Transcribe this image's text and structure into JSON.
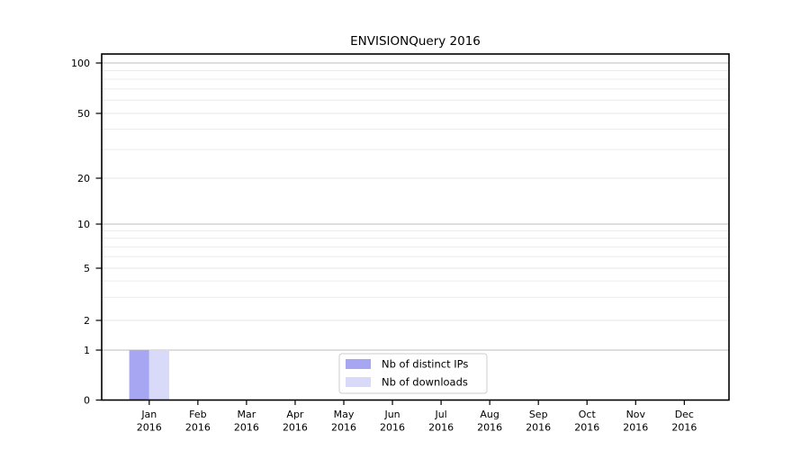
{
  "chart_data": {
    "type": "bar",
    "title": "ENVISIONQuery 2016",
    "categories": [
      "Jan",
      "Feb",
      "Mar",
      "Apr",
      "May",
      "Jun",
      "Jul",
      "Aug",
      "Sep",
      "Oct",
      "Nov",
      "Dec"
    ],
    "x_tick_year_line": "2016",
    "series": [
      {
        "name": "Nb of distinct IPs",
        "color": "#a6a6f3",
        "values": [
          1,
          0,
          0,
          0,
          0,
          0,
          0,
          0,
          0,
          0,
          0,
          0
        ]
      },
      {
        "name": "Nb of downloads",
        "color": "#d9d9f9",
        "values": [
          1,
          0,
          0,
          0,
          0,
          0,
          0,
          0,
          0,
          0,
          0,
          0
        ]
      }
    ],
    "y_axis": {
      "major_ticks": [
        0,
        1,
        2,
        5,
        10,
        20,
        50,
        100
      ],
      "minor_gridline_values": [
        3,
        4,
        6,
        7,
        8,
        9,
        30,
        40,
        60,
        70,
        80,
        90
      ],
      "scale": "log-like (1-2-5 tick pattern) with 0 at baseline",
      "ylim": [
        0,
        100
      ]
    },
    "legend": {
      "position": "bottom-center",
      "entries": [
        "Nb of distinct IPs",
        "Nb of downloads"
      ]
    },
    "grid": {
      "horizontal": true,
      "major_color": "#bcbcbc",
      "labeled_minor_color": "#e6e6e6",
      "minor_color": "#ececec"
    },
    "colors": {
      "background": "#ffffff",
      "spine": "#000000",
      "legend_border": "#cccccc"
    }
  }
}
